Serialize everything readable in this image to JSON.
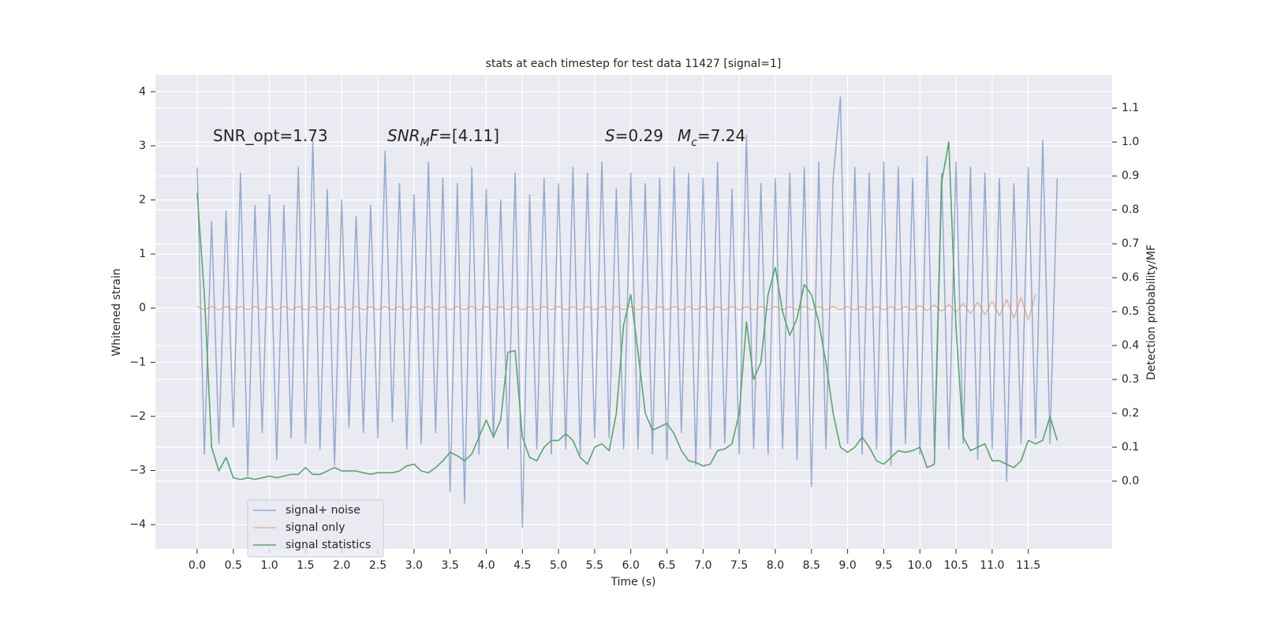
{
  "chart_data": {
    "type": "line",
    "title": "stats at each timestep for test data 11427 [signal=1]",
    "xlabel": "Time (s)",
    "ylabel": "Whitened strain",
    "y2label": "Detection probability/MF",
    "annotations": [
      [
        {
          "text": "SNR_opt=1.73"
        }
      ],
      [
        {
          "text": "SNR",
          "italic": true
        },
        {
          "text": "M",
          "italic": true,
          "sub": true
        },
        {
          "text": "F",
          "italic": true
        },
        {
          "text": "=[4.11]"
        }
      ],
      [
        {
          "text": "S",
          "italic": true
        },
        {
          "text": "=0.29"
        }
      ],
      [
        {
          "text": "M",
          "italic": true
        },
        {
          "text": "c",
          "italic": true,
          "sub": true
        },
        {
          "text": "=7.24"
        }
      ]
    ],
    "x": [
      0,
      0.1,
      0.2,
      0.3,
      0.4,
      0.5,
      0.6,
      0.7,
      0.8,
      0.9,
      1,
      1.1,
      1.2,
      1.3,
      1.4,
      1.5,
      1.6,
      1.7,
      1.8,
      1.9,
      2,
      2.1,
      2.2,
      2.3,
      2.4,
      2.5,
      2.6,
      2.7,
      2.8,
      2.9,
      3,
      3.1,
      3.2,
      3.3,
      3.4,
      3.5,
      3.6,
      3.7,
      3.8,
      3.9,
      4,
      4.1,
      4.2,
      4.3,
      4.4,
      4.5,
      4.6,
      4.7,
      4.8,
      4.9,
      5,
      5.1,
      5.2,
      5.3,
      5.4,
      5.5,
      5.6,
      5.7,
      5.8,
      5.9,
      6,
      6.1,
      6.2,
      6.3,
      6.4,
      6.5,
      6.6,
      6.7,
      6.8,
      6.9,
      7,
      7.1,
      7.2,
      7.3,
      7.4,
      7.5,
      7.6,
      7.7,
      7.8,
      7.9,
      8,
      8.1,
      8.2,
      8.3,
      8.4,
      8.5,
      8.6,
      8.7,
      8.8,
      8.9,
      9,
      9.1,
      9.2,
      9.3,
      9.4,
      9.5,
      9.6,
      9.7,
      9.8,
      9.9,
      10,
      10.1,
      10.2,
      10.3,
      10.4,
      10.5,
      10.6,
      10.7,
      10.8,
      10.9,
      11,
      11.1,
      11.2,
      11.3,
      11.4,
      11.5,
      11.6,
      11.7,
      11.8,
      11.9
    ],
    "series": [
      {
        "name": "signal+ noise",
        "color": "#4c72b0",
        "values": [
          2.6,
          -2.7,
          1.6,
          -2.5,
          1.8,
          -2.2,
          2.5,
          -3.1,
          1.9,
          -2.3,
          2.1,
          -2.8,
          1.9,
          -2.4,
          2.6,
          -2.5,
          3.1,
          -2.6,
          2.2,
          -2.9,
          2.0,
          -2.2,
          1.7,
          -2.3,
          1.9,
          -2.4,
          2.9,
          -2.1,
          2.3,
          -2.6,
          2.1,
          -2.5,
          2.7,
          -2.3,
          2.4,
          -3.4,
          2.3,
          -3.6,
          2.6,
          -2.7,
          2.2,
          -2.4,
          2.0,
          -2.6,
          2.5,
          -4.05,
          2.1,
          -2.6,
          2.4,
          -2.7,
          2.3,
          -2.6,
          2.6,
          -2.7,
          2.5,
          -2.4,
          2.7,
          -2.4,
          2.2,
          -2.6,
          2.5,
          -2.6,
          2.3,
          -2.7,
          2.4,
          -2.8,
          2.6,
          -2.3,
          2.5,
          -2.9,
          2.4,
          -2.6,
          2.7,
          -2.5,
          2.2,
          -2.7,
          3.2,
          -2.6,
          2.3,
          -2.7,
          2.4,
          -2.6,
          2.5,
          -2.8,
          2.6,
          -3.3,
          2.7,
          -2.6,
          2.4,
          3.9,
          -2.5,
          2.6,
          -2.7,
          2.5,
          -2.6,
          2.7,
          -2.9,
          2.6,
          -2.5,
          2.4,
          -2.7,
          2.8,
          -2.6,
          2.5,
          -2.6,
          2.7,
          -2.5,
          2.6,
          -2.8,
          2.5,
          -2.6,
          2.4,
          -3.2,
          2.3,
          -2.5,
          2.6,
          -2.4,
          3.1,
          -2.5,
          2.4
        ]
      },
      {
        "name": "signal only",
        "color": "#dd8452",
        "values": [
          0.03,
          -0.03,
          0.03,
          -0.03,
          0.03,
          -0.03,
          0.03,
          -0.03,
          0.03,
          -0.03,
          0.03,
          -0.03,
          0.03,
          -0.03,
          0.03,
          -0.03,
          0.03,
          -0.03,
          0.03,
          -0.03,
          0.03,
          -0.03,
          0.03,
          -0.03,
          0.03,
          -0.03,
          0.03,
          -0.03,
          0.03,
          -0.03,
          0.03,
          -0.03,
          0.03,
          -0.03,
          0.03,
          -0.03,
          0.03,
          -0.03,
          0.03,
          -0.03,
          0.03,
          -0.03,
          0.03,
          -0.03,
          0.03,
          -0.03,
          0.03,
          -0.03,
          0.03,
          -0.03,
          0.03,
          -0.03,
          0.03,
          -0.03,
          0.03,
          -0.03,
          0.03,
          -0.03,
          0.03,
          -0.03,
          0.03,
          -0.03,
          0.03,
          -0.03,
          0.03,
          -0.03,
          0.03,
          -0.03,
          0.03,
          -0.03,
          0.03,
          -0.03,
          0.03,
          -0.03,
          0.03,
          -0.03,
          0.03,
          -0.03,
          0.03,
          -0.03,
          0.03,
          -0.03,
          0.03,
          -0.03,
          0.03,
          -0.03,
          0.03,
          -0.03,
          0.03,
          -0.03,
          0.03,
          -0.03,
          0.03,
          -0.03,
          0.03,
          -0.03,
          0.03,
          -0.03,
          0.03,
          -0.03,
          0.05,
          -0.05,
          0.06,
          -0.06,
          0.07,
          -0.08,
          0.09,
          -0.1,
          0.11,
          -0.12,
          0.13,
          -0.14,
          0.16,
          -0.18,
          0.2,
          -0.22,
          0.25,
          null,
          null,
          null
        ]
      },
      {
        "name": "signal statistics",
        "color": "#55a868",
        "axis": "y2",
        "values": [
          0.85,
          0.55,
          0.1,
          0.03,
          0.07,
          0.01,
          0.005,
          0.01,
          0.005,
          0.01,
          0.015,
          0.01,
          0.015,
          0.02,
          0.02,
          0.04,
          0.02,
          0.02,
          0.03,
          0.04,
          0.03,
          0.03,
          0.03,
          0.025,
          0.02,
          0.025,
          0.025,
          0.025,
          0.03,
          0.045,
          0.05,
          0.03,
          0.025,
          0.04,
          0.06,
          0.085,
          0.075,
          0.06,
          0.08,
          0.13,
          0.18,
          0.13,
          0.18,
          0.38,
          0.385,
          0.13,
          0.07,
          0.06,
          0.1,
          0.12,
          0.12,
          0.14,
          0.12,
          0.07,
          0.05,
          0.1,
          0.11,
          0.09,
          0.2,
          0.46,
          0.55,
          0.38,
          0.2,
          0.15,
          0.16,
          0.17,
          0.14,
          0.09,
          0.06,
          0.055,
          0.045,
          0.05,
          0.09,
          0.095,
          0.11,
          0.2,
          0.47,
          0.3,
          0.35,
          0.55,
          0.63,
          0.5,
          0.43,
          0.48,
          0.58,
          0.55,
          0.47,
          0.35,
          0.2,
          0.1,
          0.085,
          0.1,
          0.13,
          0.1,
          0.06,
          0.05,
          0.07,
          0.09,
          0.085,
          0.09,
          0.1,
          0.04,
          0.05,
          0.88,
          1.0,
          0.45,
          0.13,
          0.09,
          0.1,
          0.11,
          0.06,
          0.06,
          0.05,
          0.04,
          0.06,
          0.12,
          0.11,
          0.12,
          0.19,
          0.12
        ]
      }
    ],
    "xlim": [
      -0.578,
      12.66
    ],
    "ylim": [
      -4.45,
      4.31
    ],
    "y2lim": [
      -0.2,
      1.198
    ],
    "xticks": [
      {
        "value": 0,
        "label": "0.0"
      },
      0.5,
      {
        "value": 1,
        "label": "1.0"
      },
      1.5,
      {
        "value": 2,
        "label": "2.0"
      },
      2.5,
      {
        "value": 3,
        "label": "3.0"
      },
      3.5,
      {
        "value": 4,
        "label": "4.0"
      },
      4.5,
      {
        "value": 5,
        "label": "5.0"
      },
      5.5,
      {
        "value": 6,
        "label": "6.0"
      },
      6.5,
      {
        "value": 7,
        "label": "7.0"
      },
      7.5,
      {
        "value": 8,
        "label": "8.0"
      },
      8.5,
      {
        "value": 9,
        "label": "9.0"
      },
      9.5,
      {
        "value": 10,
        "label": "10.0"
      },
      10.5,
      {
        "value": 11,
        "label": "11.0"
      },
      11.5
    ],
    "yticks": [
      {
        "value": -4,
        "label": "−4"
      },
      {
        "value": -3,
        "label": "−3"
      },
      {
        "value": -2,
        "label": "−2"
      },
      {
        "value": -1,
        "label": "−1"
      },
      0,
      1,
      2,
      3,
      4
    ],
    "y2ticks": [
      {
        "value": 0,
        "label": "0.0"
      },
      0.1,
      0.2,
      0.3,
      0.4,
      0.5,
      0.6,
      0.7,
      0.8,
      0.9,
      {
        "value": 1,
        "label": "1.0"
      },
      1.1
    ],
    "grid": true,
    "legend": "lower left"
  }
}
